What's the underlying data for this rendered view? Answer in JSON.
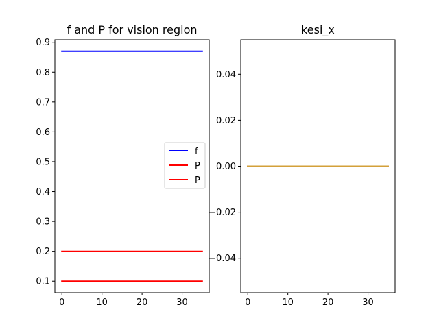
{
  "chart_data": [
    {
      "type": "line",
      "title": "f and P for vision region",
      "xlabel": "",
      "ylabel": "",
      "xlim": [
        -1.75,
        36.75
      ],
      "ylim": [
        0.0615,
        0.9085
      ],
      "xticks": [
        0,
        10,
        20,
        30
      ],
      "xtick_labels": [
        "0",
        "10",
        "20",
        "30"
      ],
      "yticks": [
        0.1,
        0.2,
        0.3,
        0.4,
        0.5,
        0.6,
        0.7,
        0.8,
        0.9
      ],
      "ytick_labels": [
        "0.1",
        "0.2",
        "0.3",
        "0.4",
        "0.5",
        "0.6",
        "0.7",
        "0.8",
        "0.9"
      ],
      "grid": false,
      "legend_position": "center-right",
      "series": [
        {
          "name": "f",
          "color": "#0000ff",
          "x": [
            0,
            35
          ],
          "y": [
            0.87,
            0.87
          ]
        },
        {
          "name": "P",
          "color": "#ff0000",
          "x": [
            0,
            35
          ],
          "y": [
            0.2,
            0.2
          ]
        },
        {
          "name": "P",
          "color": "#ff0000",
          "x": [
            0,
            35
          ],
          "y": [
            0.1,
            0.1
          ]
        }
      ]
    },
    {
      "type": "line",
      "title": "kesi_x",
      "xlabel": "",
      "ylabel": "",
      "xlim": [
        -1.75,
        36.75
      ],
      "ylim": [
        -0.055,
        0.055
      ],
      "xticks": [
        0,
        10,
        20,
        30
      ],
      "xtick_labels": [
        "0",
        "10",
        "20",
        "30"
      ],
      "yticks": [
        -0.04,
        -0.02,
        0.0,
        0.02,
        0.04
      ],
      "ytick_labels": [
        "−0.04",
        "−0.02",
        "0.00",
        "0.02",
        "0.04"
      ],
      "grid": false,
      "series": [
        {
          "color": "#1f77b4",
          "x": [
            0,
            35
          ],
          "y": [
            0,
            0
          ]
        },
        {
          "color": "#ff7f0e",
          "x": [
            0,
            35
          ],
          "y": [
            0,
            0
          ]
        },
        {
          "color": "#d3a03a",
          "x": [
            0,
            35
          ],
          "y": [
            0,
            0
          ]
        }
      ]
    }
  ]
}
